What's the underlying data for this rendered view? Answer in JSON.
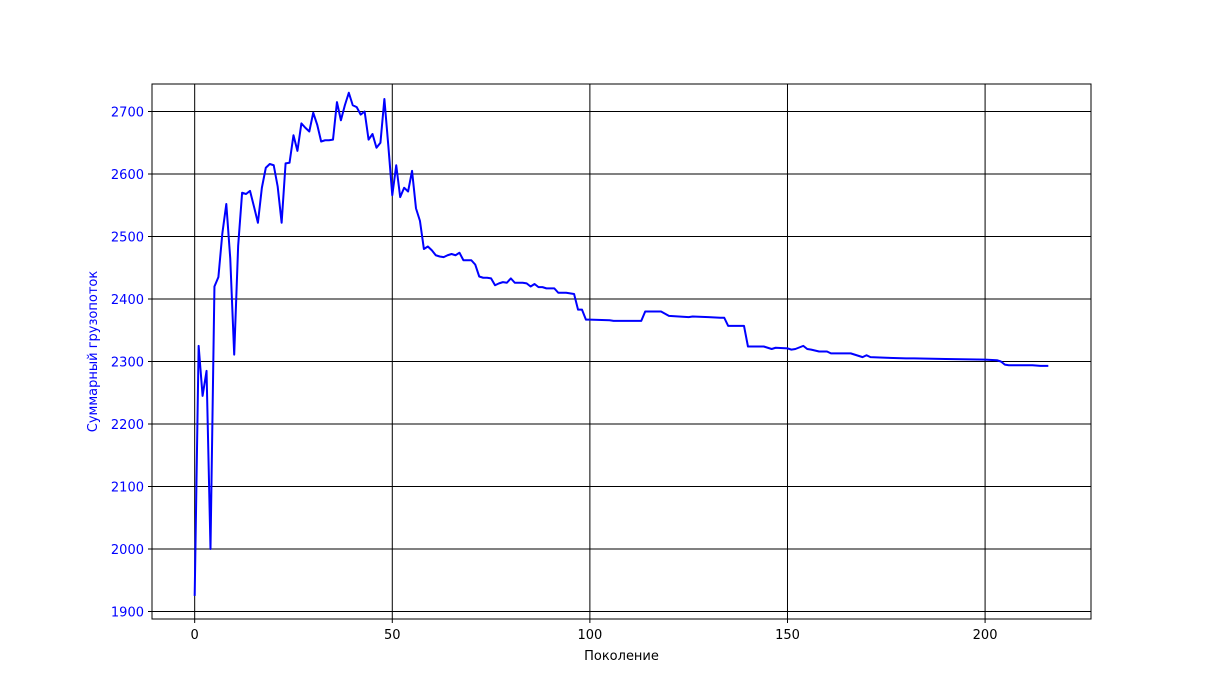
{
  "chart_data": {
    "type": "line",
    "title": "",
    "xlabel": "Поколение",
    "ylabel": "Суммарный грузопоток",
    "xlim": [
      -10.8,
      226.8
    ],
    "ylim": [
      1888,
      2744
    ],
    "x_ticks": [
      0,
      50,
      100,
      150,
      200
    ],
    "y_ticks": [
      1900,
      2000,
      2100,
      2200,
      2300,
      2400,
      2500,
      2600,
      2700
    ],
    "grid": true,
    "line_color": "#0000ff",
    "ylabel_color": "#0000ff",
    "ytick_color": "#0000ff",
    "grid_color": "#000000",
    "series": [
      {
        "x": [
          0,
          1,
          2,
          3,
          4,
          5,
          6,
          7,
          8,
          9,
          10,
          11,
          12,
          13,
          14,
          15,
          16,
          17,
          18,
          19,
          20,
          21,
          22,
          23,
          24,
          25,
          26,
          27,
          28,
          29,
          30,
          31,
          32,
          33,
          34,
          35,
          36,
          37,
          38,
          39,
          40,
          41,
          42,
          43,
          44,
          45,
          46,
          47,
          48,
          49,
          50,
          51,
          52,
          53,
          54,
          55,
          56,
          57,
          58,
          59,
          60,
          61,
          62,
          63,
          64,
          65,
          66,
          67,
          68,
          69,
          70,
          71,
          72,
          73,
          74,
          75,
          76,
          77,
          78,
          79,
          80,
          81,
          82,
          83,
          84,
          85,
          86,
          87,
          88,
          89,
          90,
          91,
          92,
          93,
          94,
          95,
          96,
          97,
          98,
          99,
          100,
          105,
          106,
          110,
          113,
          114,
          118,
          120,
          125,
          126,
          130,
          133,
          134,
          135,
          139,
          140,
          144,
          145,
          146,
          147,
          150,
          151,
          152,
          154,
          155,
          156,
          158,
          160,
          161,
          166,
          167,
          169,
          170,
          171,
          175,
          180,
          181,
          182,
          190,
          200,
          203,
          204,
          205,
          206,
          210,
          212,
          214,
          216
        ],
        "y": [
          1925,
          2325,
          2245,
          2285,
          2000,
          2420,
          2435,
          2505,
          2552,
          2465,
          2311,
          2485,
          2570,
          2568,
          2573,
          2548,
          2522,
          2578,
          2610,
          2616,
          2614,
          2580,
          2522,
          2617,
          2618,
          2662,
          2637,
          2681,
          2674,
          2668,
          2698,
          2679,
          2652,
          2654,
          2654,
          2655,
          2715,
          2686,
          2710,
          2730,
          2710,
          2707,
          2695,
          2700,
          2655,
          2664,
          2642,
          2650,
          2720,
          2645,
          2566,
          2614,
          2563,
          2578,
          2572,
          2605,
          2545,
          2525,
          2480,
          2484,
          2478,
          2470,
          2468,
          2467,
          2470,
          2472,
          2470,
          2474,
          2462,
          2462,
          2462,
          2455,
          2436,
          2434,
          2434,
          2433,
          2422,
          2425,
          2427,
          2426,
          2433,
          2426,
          2426,
          2426,
          2425,
          2420,
          2424,
          2419,
          2419,
          2417,
          2417,
          2417,
          2410,
          2410,
          2410,
          2409,
          2408,
          2383,
          2383,
          2367,
          2367,
          2366,
          2365,
          2365,
          2365,
          2380,
          2380,
          2373,
          2371,
          2372,
          2371,
          2370,
          2370,
          2357,
          2357,
          2324,
          2324,
          2322,
          2320,
          2322,
          2321,
          2319,
          2320,
          2325,
          2320,
          2319,
          2316,
          2316,
          2313,
          2313,
          2311,
          2307,
          2310,
          2307,
          2306,
          2305,
          2305,
          2305,
          2304,
          2303,
          2302,
          2300,
          2295,
          2294,
          2294,
          2294,
          2293,
          2293
        ]
      }
    ]
  }
}
